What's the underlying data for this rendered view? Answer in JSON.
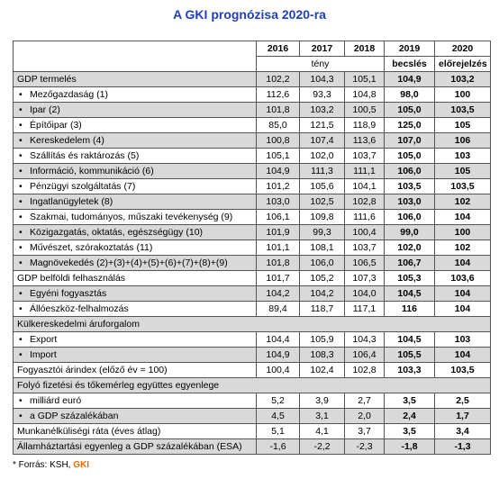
{
  "title": "A GKI prognózisa 2020-ra",
  "table": {
    "years": [
      "2016",
      "2017",
      "2018",
      "2019",
      "2020"
    ],
    "subheaders": {
      "actual": "tény",
      "estimate": "becslés",
      "forecast": "előrejelzés"
    },
    "rows": [
      {
        "label": "GDP termelés",
        "values": [
          "102,2",
          "104,3",
          "105,1",
          "104,9",
          "103,2"
        ]
      },
      {
        "label": "Mezőgazdaság (1)",
        "bullet": true,
        "values": [
          "112,6",
          "93,3",
          "104,8",
          "98,0",
          "100"
        ]
      },
      {
        "label": "Ipar (2)",
        "bullet": true,
        "values": [
          "101,8",
          "103,2",
          "100,5",
          "105,0",
          "103,5"
        ]
      },
      {
        "label": "Építőipar (3)",
        "bullet": true,
        "values": [
          "85,0",
          "121,5",
          "118,9",
          "125,0",
          "105"
        ]
      },
      {
        "label": "Kereskedelem (4)",
        "bullet": true,
        "values": [
          "100,8",
          "107,4",
          "113,6",
          "107,0",
          "106"
        ]
      },
      {
        "label": "Szállítás és raktározás (5)",
        "bullet": true,
        "values": [
          "105,1",
          "102,0",
          "103,7",
          "105,0",
          "103"
        ]
      },
      {
        "label": "Információ, kommunikáció (6)",
        "bullet": true,
        "values": [
          "104,9",
          "111,3",
          "111,1",
          "106,0",
          "105"
        ]
      },
      {
        "label": "Pénzügyi szolgáltatás (7)",
        "bullet": true,
        "values": [
          "101,2",
          "105,6",
          "104,1",
          "103,5",
          "103,5"
        ]
      },
      {
        "label": "Ingatlanügyletek (8)",
        "bullet": true,
        "values": [
          "103,0",
          "102,5",
          "102,8",
          "103,0",
          "102"
        ]
      },
      {
        "label": "Szakmai, tudományos, műszaki tevékenység (9)",
        "bullet": true,
        "values": [
          "106,1",
          "109,8",
          "111,6",
          "106,0",
          "104"
        ]
      },
      {
        "label": "Közigazgatás, oktatás, egészségügy (10)",
        "bullet": true,
        "values": [
          "101,9",
          "99,3",
          "100,4",
          "99,0",
          "100"
        ]
      },
      {
        "label": "Művészet, szórakoztatás (11)",
        "bullet": true,
        "values": [
          "101,1",
          "108,1",
          "103,7",
          "102,0",
          "102"
        ]
      },
      {
        "label": "Magnövekedés (2)+(3)+(4)+(5)+(6)+(7)+(8)+(9)",
        "bullet": true,
        "values": [
          "101,8",
          "106,0",
          "106,5",
          "106,7",
          "104"
        ]
      },
      {
        "label": "GDP belföldi felhasználás",
        "values": [
          "101,7",
          "105,2",
          "107,3",
          "105,3",
          "103,6"
        ]
      },
      {
        "label": "Egyéni fogyasztás",
        "bullet": true,
        "values": [
          "104,2",
          "104,2",
          "104,0",
          "104,5",
          "104"
        ]
      },
      {
        "label": "Állóeszköz-felhalmozás",
        "bullet": true,
        "values": [
          "89,4",
          "118,7",
          "117,1",
          "116",
          "104"
        ]
      },
      {
        "label": "Külkereskedelmi áruforgalom"
      },
      {
        "label": "Export",
        "bullet": true,
        "values": [
          "104,4",
          "105,9",
          "104,3",
          "104,5",
          "103"
        ]
      },
      {
        "label": "Import",
        "bullet": true,
        "values": [
          "104,9",
          "108,3",
          "106,4",
          "105,5",
          "104"
        ]
      },
      {
        "label": "Fogyasztói árindex (előző év = 100)",
        "values": [
          "100,4",
          "102,4",
          "102,8",
          "103,3",
          "103,5"
        ]
      },
      {
        "label": "Folyó fizetési és tőkemérleg együttes egyenlege"
      },
      {
        "label": "milliárd euró",
        "bullet": true,
        "values": [
          "5,2",
          "3,9",
          "2,7",
          "3,5",
          "2,5"
        ]
      },
      {
        "label": "a GDP százalékában",
        "bullet": true,
        "values": [
          "4,5",
          "3,1",
          "2,0",
          "2,4",
          "1,7"
        ]
      },
      {
        "label": "Munkanélküliségi ráta (éves átlag)",
        "values": [
          "5,1",
          "4,1",
          "3,7",
          "3,5",
          "3,4"
        ]
      },
      {
        "label": "Államháztartási egyenleg a GDP százalékában (ESA)",
        "values": [
          "-1,6",
          "-2,2",
          "-2,3",
          "-1,8",
          "-1,3"
        ]
      }
    ]
  },
  "footnote": {
    "text": "* Forrás: KSH, ",
    "highlight": "GKI"
  }
}
